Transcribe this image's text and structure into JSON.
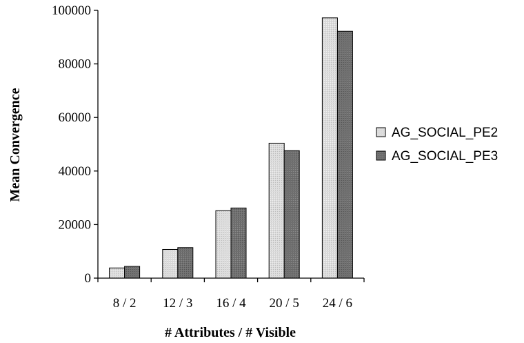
{
  "chart_data": {
    "type": "bar",
    "title": "",
    "xlabel": "# Attributes / # Visible",
    "ylabel": "Mean Convergence",
    "categories": [
      "8 / 2",
      "12 / 3",
      "16 / 4",
      "20 / 5",
      "24 / 6"
    ],
    "series": [
      {
        "name": "AG_SOCIAL_PE2",
        "values": [
          3800,
          10700,
          25200,
          50400,
          97200
        ],
        "color": "#d4d4d4"
      },
      {
        "name": "AG_SOCIAL_PE3",
        "values": [
          4400,
          11400,
          26200,
          47600,
          92200
        ],
        "color": "#6e6e6e"
      }
    ],
    "ylim": [
      0,
      100000
    ],
    "yticks": [
      0,
      20000,
      40000,
      60000,
      80000,
      100000
    ],
    "grid": false,
    "legend": "right"
  }
}
